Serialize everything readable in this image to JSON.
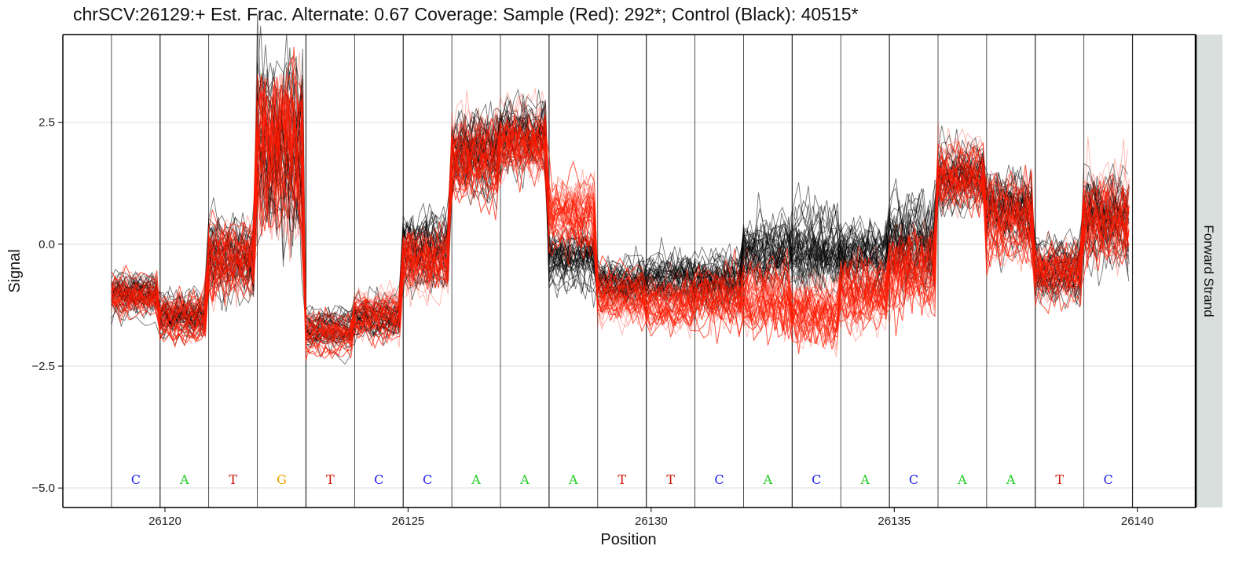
{
  "chart_data": {
    "type": "line",
    "title": "chrSCV:26129:+ Est. Frac. Alternate: 0.67  Coverage: Sample (Red): 292*; Control (Black): 40515*",
    "xlabel": "Position",
    "ylabel": "Signal",
    "facet_label": "Forward Strand",
    "xlim": [
      26117.9,
      26141.2
    ],
    "ylim": [
      -5.4,
      4.3
    ],
    "x_ticks": [
      26120,
      26125,
      26130,
      26135,
      26140
    ],
    "x_tick_labels": [
      "26120",
      "26125",
      "26130",
      "26135",
      "26140"
    ],
    "y_ticks": [
      2.5,
      0.0,
      -2.5,
      -5.0
    ],
    "y_tick_labels": [
      "2.5",
      "0.0",
      "−2.5",
      "−5.0"
    ],
    "grid": true,
    "base_boundaries": [
      26118.9,
      26119.9,
      26120.9,
      26121.9,
      26122.9,
      26123.9,
      26124.9,
      26125.9,
      26126.9,
      26127.9,
      26128.9,
      26129.9,
      26130.9,
      26131.9,
      26132.9,
      26133.9,
      26134.9,
      26135.9,
      26136.9,
      26137.9,
      26138.9,
      26139.9
    ],
    "bases": [
      {
        "pos": 26119.4,
        "base": "C"
      },
      {
        "pos": 26120.4,
        "base": "A"
      },
      {
        "pos": 26121.4,
        "base": "T"
      },
      {
        "pos": 26122.4,
        "base": "G"
      },
      {
        "pos": 26123.4,
        "base": "T"
      },
      {
        "pos": 26124.4,
        "base": "C"
      },
      {
        "pos": 26125.4,
        "base": "C"
      },
      {
        "pos": 26126.4,
        "base": "A"
      },
      {
        "pos": 26127.4,
        "base": "A"
      },
      {
        "pos": 26128.4,
        "base": "A"
      },
      {
        "pos": 26129.4,
        "base": "T"
      },
      {
        "pos": 26130.4,
        "base": "T"
      },
      {
        "pos": 26131.4,
        "base": "C"
      },
      {
        "pos": 26132.4,
        "base": "A"
      },
      {
        "pos": 26133.4,
        "base": "C"
      },
      {
        "pos": 26134.4,
        "base": "A"
      },
      {
        "pos": 26135.4,
        "base": "C"
      },
      {
        "pos": 26136.4,
        "base": "A"
      },
      {
        "pos": 26137.4,
        "base": "A"
      },
      {
        "pos": 26138.4,
        "base": "T"
      },
      {
        "pos": 26139.4,
        "base": "C"
      }
    ],
    "base_colors": {
      "A": "#22cc22",
      "C": "#2222ee",
      "G": "#f5a000",
      "T": "#cc1100"
    },
    "base_label_y": -4.92,
    "series": [
      {
        "color": "#000000",
        "levels": [
          -1.05,
          -1.45,
          -0.25,
          1.9,
          -1.75,
          -1.5,
          -0.15,
          1.8,
          2.25,
          -0.3,
          -0.8,
          -0.7,
          -0.8,
          -0.2,
          -0.1,
          -0.15,
          0.0,
          1.45,
          0.7,
          -0.55,
          0.5
        ],
        "spread": [
          0.25,
          0.25,
          0.45,
          1.2,
          0.2,
          0.25,
          0.45,
          0.55,
          0.4,
          0.4,
          0.3,
          0.3,
          0.35,
          0.45,
          0.5,
          0.45,
          0.55,
          0.4,
          0.5,
          0.35,
          0.6
        ]
      },
      {
        "color": "#ff1a00",
        "levels": [
          -1.05,
          -1.5,
          -0.35,
          1.7,
          -1.8,
          -1.45,
          -0.3,
          1.75,
          2.05,
          0.6,
          -1.05,
          -1.25,
          -1.15,
          -1.1,
          -1.5,
          -1.05,
          -0.5,
          1.4,
          0.45,
          -0.6,
          0.5
        ],
        "spread": [
          0.25,
          0.25,
          0.45,
          1.2,
          0.2,
          0.25,
          0.45,
          0.55,
          0.45,
          0.45,
          0.35,
          0.35,
          0.35,
          0.45,
          0.45,
          0.45,
          0.55,
          0.4,
          0.5,
          0.35,
          0.6
        ]
      }
    ]
  }
}
